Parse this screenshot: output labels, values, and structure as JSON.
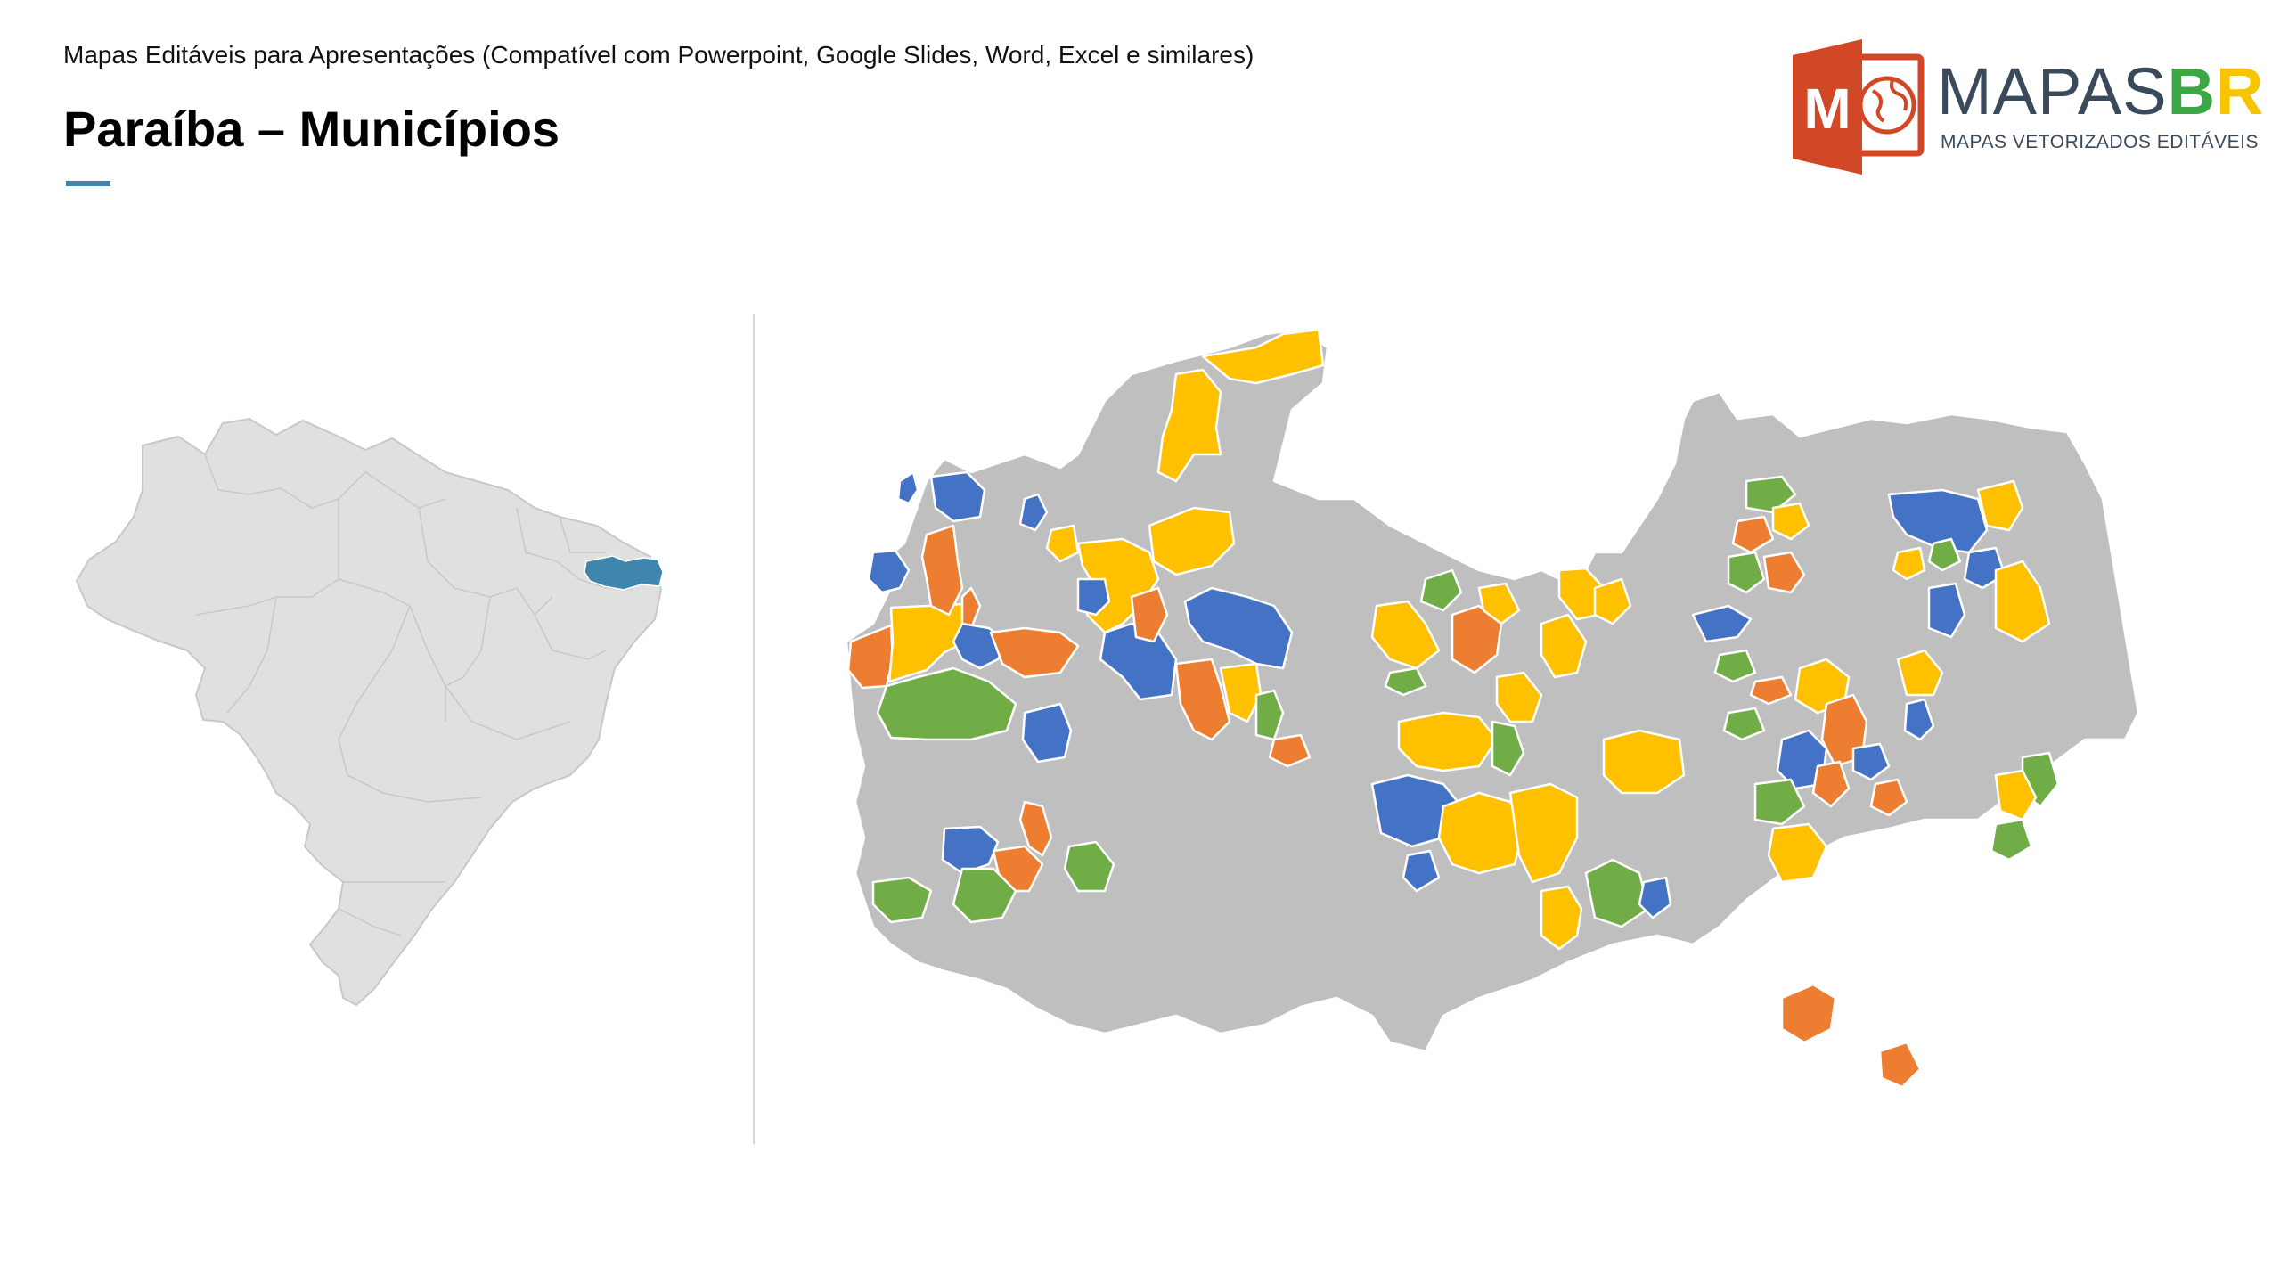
{
  "header": {
    "subtitle": "Mapas Editáveis para Apresentações (Compatível com Powerpoint, Google Slides, Word, Excel e similares)",
    "title": "Paraíba – Municípios"
  },
  "logo": {
    "mark_letter": "M",
    "word_main": "MAPAS",
    "word_b": "B",
    "word_r": "R",
    "tagline": "MAPAS VETORIZADOS EDITÁVEIS"
  },
  "colors": {
    "accent": "#3e86ad",
    "brazil_fill": "#e0e0e0",
    "highlight_state": "#3e86ad",
    "municipality_default": "#bfbfbf",
    "palette": [
      "#4472c4",
      "#ed7d31",
      "#ffc000",
      "#70ad47"
    ],
    "logo_red": "#d24726"
  },
  "maps": {
    "locator": "brazil-locator",
    "main": "paraiba-municipalities"
  }
}
